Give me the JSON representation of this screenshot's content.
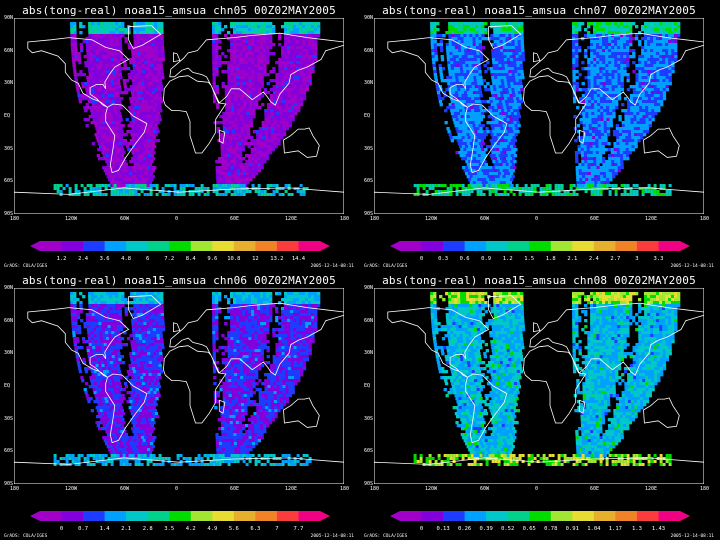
{
  "panels": [
    {
      "title": "abs(tong-real) noaa15_amsua chn05 00Z02MAY2005",
      "variant": "p05",
      "colorbar_labels": [
        "1.2",
        "2.4",
        "3.6",
        "4.8",
        "6",
        "7.2",
        "8.4",
        "9.6",
        "10.8",
        "12",
        "13.2",
        "14.4"
      ]
    },
    {
      "title": "abs(tong-real) noaa15_amsua chn07 00Z02MAY2005",
      "variant": "p07",
      "colorbar_labels": [
        "0",
        "0.3",
        "0.6",
        "0.9",
        "1.2",
        "1.5",
        "1.8",
        "2.1",
        "2.4",
        "2.7",
        "3",
        "3.3"
      ]
    },
    {
      "title": "abs(tong-real) noaa15_amsua chn06 00Z02MAY2005",
      "variant": "p06",
      "colorbar_labels": [
        "0",
        "0.7",
        "1.4",
        "2.1",
        "2.8",
        "3.5",
        "4.2",
        "4.9",
        "5.6",
        "6.3",
        "7",
        "7.7"
      ]
    },
    {
      "title": "abs(tong-real) noaa15_amsua chn08 00Z02MAY2005",
      "variant": "p08",
      "colorbar_labels": [
        "0",
        "0.13",
        "0.26",
        "0.39",
        "0.52",
        "0.65",
        "0.78",
        "0.91",
        "1.04",
        "1.17",
        "1.3",
        "1.43"
      ]
    }
  ],
  "axes": {
    "y_ticks": [
      "90N",
      "60N",
      "30N",
      "EQ",
      "30S",
      "60S",
      "90S"
    ],
    "x_ticks": [
      "180",
      "120W",
      "60W",
      "0",
      "60E",
      "120E",
      "180"
    ]
  },
  "footer": {
    "left": "GrADS: COLA/IGES",
    "right": "2005-12-14-08:11"
  },
  "colors": {
    "background": "#000000",
    "coast": "#ffffff",
    "palette": [
      "#a000c8",
      "#8200dc",
      "#1e3cff",
      "#00a0ff",
      "#00c8c8",
      "#00d28c",
      "#00dc00",
      "#a0e632",
      "#e6dc32",
      "#e6af2d",
      "#f08228",
      "#fa3c3c",
      "#f00082"
    ]
  }
}
